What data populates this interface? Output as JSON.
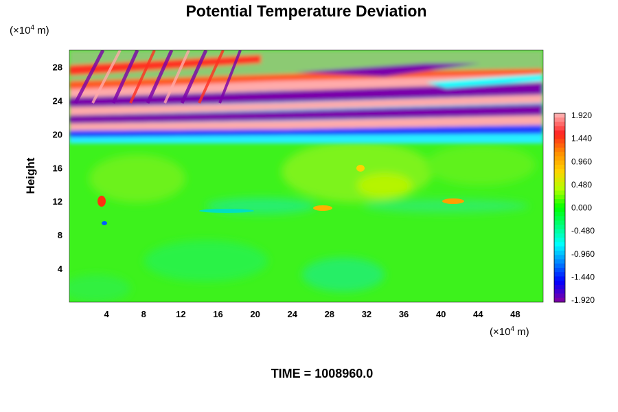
{
  "chart_data": {
    "type": "heatmap",
    "title": "Potential Temperature Deviation",
    "ylabel": "Height",
    "xunit": {
      "prefix": "(×10",
      "exp": "4",
      "suffix": " m)"
    },
    "yunit": {
      "prefix": "(×10",
      "exp": "4",
      "suffix": " m)"
    },
    "xlim": [
      0,
      51
    ],
    "ylim": [
      0,
      30
    ],
    "xticks": [
      "4",
      "8",
      "12",
      "16",
      "20",
      "24",
      "28",
      "32",
      "36",
      "40",
      "44",
      "48"
    ],
    "yticks": [
      "4",
      "8",
      "12",
      "16",
      "20",
      "24",
      "28"
    ],
    "colorbar": {
      "range": [
        -1.92,
        1.92
      ],
      "labels": [
        "1.920",
        "1.440",
        "0.960",
        "0.480",
        "0.000",
        "-0.480",
        "-0.960",
        "-1.440",
        "-1.920"
      ],
      "colors": [
        "#ffaaaa",
        "#ff2020",
        "#ff8c00",
        "#ffd200",
        "#b4ff00",
        "#00ff00",
        "#00ff80",
        "#00ffff",
        "#0080ff",
        "#0000ff",
        "#7a00aa"
      ]
    },
    "footer": "TIME = 1008960.0"
  }
}
